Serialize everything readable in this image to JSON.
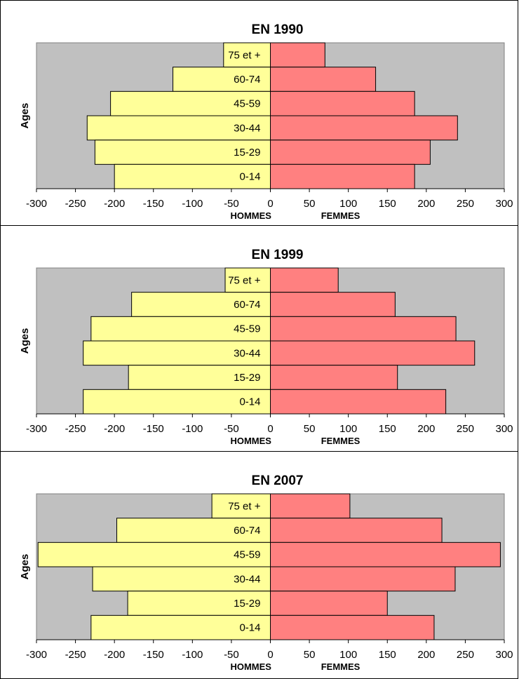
{
  "colors": {
    "plot_bg": "#c0c0c0",
    "hommes": "#ffff99",
    "femmes": "#ff8080",
    "border": "#000000"
  },
  "chart_data": [
    {
      "type": "bar",
      "orientation": "horizontal-pyramid",
      "title": "EN 1990",
      "ylabel": "Ages",
      "xlabel_left": "HOMMES",
      "xlabel_right": "FEMMES",
      "xlim": [
        -300,
        300
      ],
      "xticks": [
        -300,
        -250,
        -200,
        -150,
        -100,
        -50,
        0,
        50,
        100,
        150,
        200,
        250,
        300
      ],
      "categories": [
        "75 et +",
        "60-74",
        "45-59",
        "30-44",
        "15-29",
        "0-14"
      ],
      "series": [
        {
          "name": "HOMMES",
          "values": [
            -60,
            -125,
            -205,
            -235,
            -225,
            -200
          ]
        },
        {
          "name": "FEMMES",
          "values": [
            70,
            135,
            185,
            240,
            205,
            185
          ]
        }
      ]
    },
    {
      "type": "bar",
      "orientation": "horizontal-pyramid",
      "title": "EN 1999",
      "ylabel": "Ages",
      "xlabel_left": "HOMMES",
      "xlabel_right": "FEMMES",
      "xlim": [
        -300,
        300
      ],
      "xticks": [
        -300,
        -250,
        -200,
        -150,
        -100,
        -50,
        0,
        50,
        100,
        150,
        200,
        250,
        300
      ],
      "categories": [
        "75 et +",
        "60-74",
        "45-59",
        "30-44",
        "15-29",
        "0-14"
      ],
      "series": [
        {
          "name": "HOMMES",
          "values": [
            -58,
            -178,
            -230,
            -240,
            -182,
            -240
          ]
        },
        {
          "name": "FEMMES",
          "values": [
            87,
            160,
            238,
            262,
            163,
            225
          ]
        }
      ]
    },
    {
      "type": "bar",
      "orientation": "horizontal-pyramid",
      "title": "EN 2007",
      "ylabel": "Ages",
      "xlabel_left": "HOMMES",
      "xlabel_right": "FEMMES",
      "xlim": [
        -300,
        300
      ],
      "xticks": [
        -300,
        -250,
        -200,
        -150,
        -100,
        -50,
        0,
        50,
        100,
        150,
        200,
        250,
        300
      ],
      "categories": [
        "75 et +",
        "60-74",
        "45-59",
        "30-44",
        "15-29",
        "0-14"
      ],
      "series": [
        {
          "name": "HOMMES",
          "values": [
            -75,
            -197,
            -298,
            -228,
            -183,
            -230
          ]
        },
        {
          "name": "FEMMES",
          "values": [
            102,
            220,
            295,
            237,
            150,
            210
          ]
        }
      ]
    }
  ]
}
